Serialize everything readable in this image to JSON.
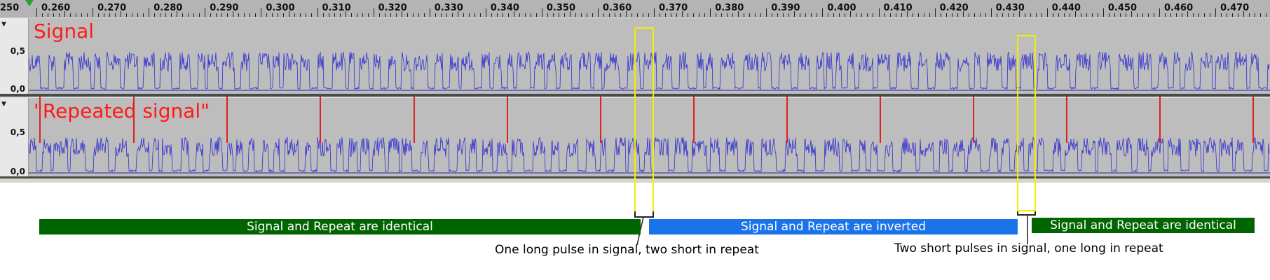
{
  "ruler": {
    "left_edge_label": "250",
    "ticks": [
      "0.260",
      "0.270",
      "0.280",
      "0.290",
      "0.300",
      "0.310",
      "0.320",
      "0.330",
      "0.340",
      "0.350",
      "0.360",
      "0.370",
      "0.380",
      "0.390",
      "0.400",
      "0.410",
      "0.420",
      "0.430",
      "0.440",
      "0.450",
      "0.460",
      "0.470"
    ]
  },
  "tracks": [
    {
      "title": "Signal",
      "scale_top": "0,5",
      "scale_zero": "0,0"
    },
    {
      "title": "\"Repeated signal\"",
      "scale_top": "0,5",
      "scale_zero": "0,0"
    }
  ],
  "banners": [
    {
      "text": "Signal and Repeat are identical",
      "color": "#006400"
    },
    {
      "text": "Signal and Repeat are inverted",
      "color": "#1a73e8"
    },
    {
      "text": "Signal and Repeat are identical",
      "color": "#006400"
    }
  ],
  "annotations": [
    {
      "text": "One long pulse in signal, two short in repeat"
    },
    {
      "text": "Two short  pulses in signal, one long in repeat"
    }
  ],
  "colors": {
    "waveform": "#3030d0",
    "marker_line": "#e02020",
    "highlight_box": "#f0f000",
    "track_bg": "#bdbdbd",
    "title_text": "#ff1a1a"
  }
}
